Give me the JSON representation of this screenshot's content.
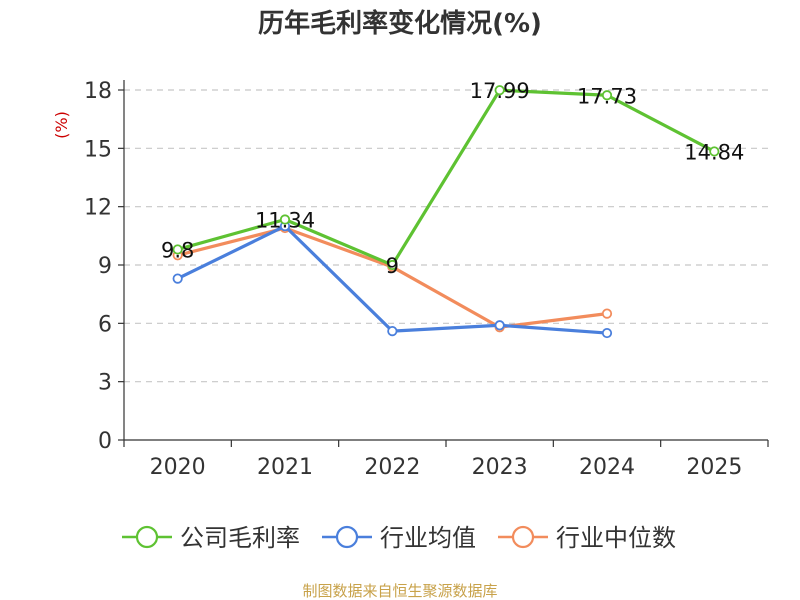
{
  "chart_data": {
    "type": "line",
    "title": "历年毛利率变化情况(%)",
    "xlabel": "",
    "ylabel": "(%)",
    "categories": [
      "2020",
      "2021",
      "2022",
      "2023",
      "2024",
      "2025"
    ],
    "ylim": [
      0,
      18
    ],
    "yticks": [
      0,
      3,
      6,
      9,
      12,
      15,
      18
    ],
    "grid": "horizontal-dashed",
    "legend_position": "bottom",
    "series": [
      {
        "name": "公司毛利率",
        "color": "#5ec232",
        "values": [
          9.8,
          11.34,
          9,
          17.99,
          17.73,
          14.84
        ],
        "labels": [
          "9.8",
          "11.34",
          "9",
          "17.99",
          "17.73",
          "14.84"
        ]
      },
      {
        "name": "行业均值",
        "color": "#4a7fdc",
        "values": [
          8.3,
          11.0,
          5.6,
          5.9,
          5.5,
          null
        ]
      },
      {
        "name": "行业中位数",
        "color": "#f28c5c",
        "values": [
          9.5,
          10.9,
          8.9,
          5.8,
          6.5,
          null
        ]
      }
    ],
    "source": "制图数据来自恒生聚源数据库"
  }
}
